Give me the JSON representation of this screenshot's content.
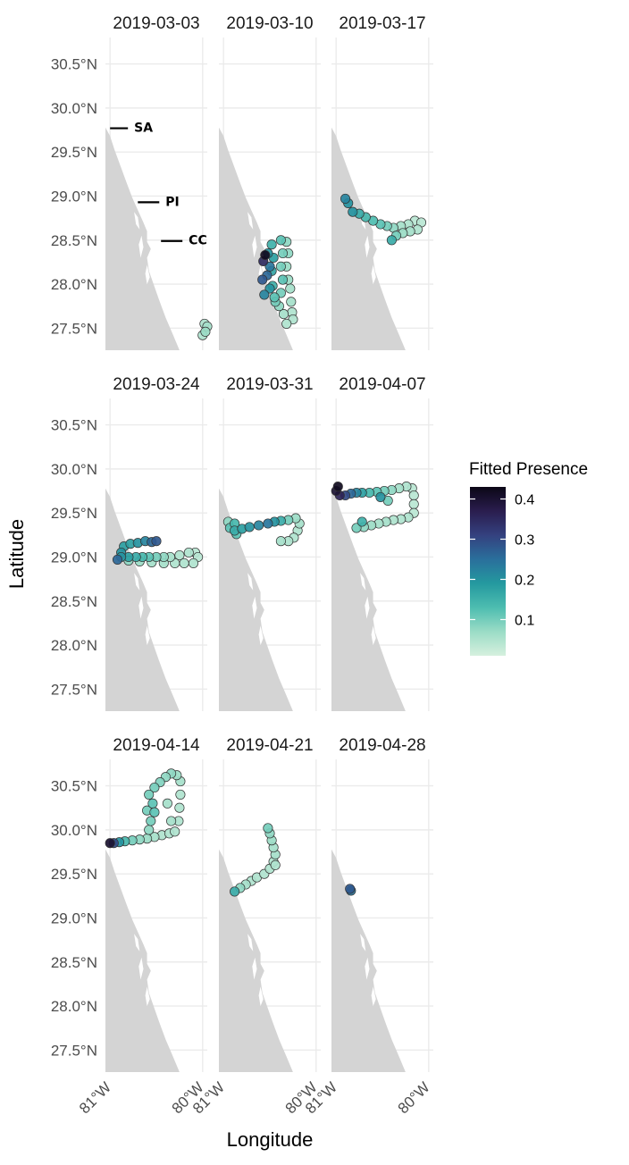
{
  "chart_data": {
    "type": "scatter",
    "facets": [
      {
        "title": "2019-03-03",
        "points": [
          [
            -79.95,
            27.52,
            0.06
          ],
          [
            -79.97,
            27.46,
            0.07
          ],
          [
            -80.0,
            27.42,
            0.05
          ],
          [
            -79.98,
            27.55,
            0.05
          ]
        ]
      },
      {
        "title": "2019-03-10",
        "points": [
          [
            -80.55,
            28.33,
            0.42
          ],
          [
            -80.57,
            28.26,
            0.35
          ],
          [
            -80.58,
            28.05,
            0.28
          ],
          [
            -80.56,
            27.88,
            0.22
          ],
          [
            -80.52,
            28.35,
            0.2
          ],
          [
            -80.48,
            28.45,
            0.15
          ],
          [
            -80.46,
            28.3,
            0.18
          ],
          [
            -80.48,
            28.15,
            0.17
          ],
          [
            -80.47,
            27.98,
            0.15
          ],
          [
            -80.45,
            27.85,
            0.12
          ],
          [
            -80.44,
            27.8,
            0.1
          ],
          [
            -80.4,
            27.75,
            0.08
          ],
          [
            -80.38,
            27.9,
            0.1
          ],
          [
            -80.36,
            28.05,
            0.12
          ],
          [
            -80.38,
            28.2,
            0.1
          ],
          [
            -80.36,
            28.35,
            0.1
          ],
          [
            -80.38,
            28.5,
            0.12
          ],
          [
            -80.32,
            28.48,
            0.08
          ],
          [
            -80.3,
            28.35,
            0.08
          ],
          [
            -80.32,
            28.2,
            0.07
          ],
          [
            -80.3,
            28.05,
            0.07
          ],
          [
            -80.28,
            27.95,
            0.06
          ],
          [
            -80.27,
            27.8,
            0.06
          ],
          [
            -80.26,
            27.68,
            0.05
          ],
          [
            -80.25,
            27.6,
            0.05
          ],
          [
            -80.32,
            27.55,
            0.05
          ],
          [
            -80.35,
            27.66,
            0.06
          ],
          [
            -80.5,
            28.2,
            0.24
          ],
          [
            -80.53,
            28.1,
            0.26
          ],
          [
            -80.5,
            27.95,
            0.2
          ]
        ]
      },
      {
        "title": "2019-03-17",
        "points": [
          [
            -80.9,
            28.97,
            0.22
          ],
          [
            -80.87,
            28.92,
            0.2
          ],
          [
            -80.82,
            28.82,
            0.2
          ],
          [
            -80.75,
            28.8,
            0.16
          ],
          [
            -80.68,
            28.76,
            0.14
          ],
          [
            -80.6,
            28.72,
            0.13
          ],
          [
            -80.52,
            28.68,
            0.12
          ],
          [
            -80.45,
            28.66,
            0.1
          ],
          [
            -80.38,
            28.64,
            0.08
          ],
          [
            -80.3,
            28.66,
            0.06
          ],
          [
            -80.22,
            28.68,
            0.05
          ],
          [
            -80.15,
            28.72,
            0.04
          ],
          [
            -80.08,
            28.7,
            0.04
          ],
          [
            -80.12,
            28.62,
            0.05
          ],
          [
            -80.2,
            28.6,
            0.06
          ],
          [
            -80.28,
            28.58,
            0.07
          ],
          [
            -80.35,
            28.55,
            0.1
          ],
          [
            -80.4,
            28.5,
            0.16
          ]
        ]
      },
      {
        "title": "2019-03-24",
        "points": [
          [
            -80.92,
            28.97,
            0.26
          ],
          [
            -80.88,
            29.05,
            0.2
          ],
          [
            -80.85,
            29.12,
            0.18
          ],
          [
            -80.78,
            29.15,
            0.18
          ],
          [
            -80.7,
            29.16,
            0.2
          ],
          [
            -80.62,
            29.18,
            0.22
          ],
          [
            -80.55,
            29.17,
            0.26
          ],
          [
            -80.5,
            29.18,
            0.28
          ],
          [
            -80.88,
            29.0,
            0.2
          ],
          [
            -80.8,
            29.0,
            0.18
          ],
          [
            -80.72,
            29.0,
            0.16
          ],
          [
            -80.65,
            29.0,
            0.14
          ],
          [
            -80.58,
            29.0,
            0.12
          ],
          [
            -80.5,
            29.0,
            0.1
          ],
          [
            -80.42,
            29.0,
            0.08
          ],
          [
            -80.35,
            29.0,
            0.06
          ],
          [
            -80.25,
            29.02,
            0.05
          ],
          [
            -80.15,
            29.05,
            0.05
          ],
          [
            -80.08,
            29.05,
            0.04
          ],
          [
            -80.05,
            29.0,
            0.04
          ],
          [
            -80.1,
            28.93,
            0.05
          ],
          [
            -80.2,
            28.93,
            0.05
          ],
          [
            -80.3,
            28.93,
            0.05
          ],
          [
            -80.42,
            28.93,
            0.06
          ],
          [
            -80.55,
            28.94,
            0.06
          ],
          [
            -80.68,
            28.95,
            0.07
          ],
          [
            -80.8,
            28.96,
            0.08
          ]
        ]
      },
      {
        "title": "2019-03-31",
        "points": [
          [
            -80.95,
            29.4,
            0.08
          ],
          [
            -80.93,
            29.33,
            0.12
          ],
          [
            -80.88,
            29.3,
            0.16
          ],
          [
            -80.8,
            29.32,
            0.18
          ],
          [
            -80.72,
            29.34,
            0.2
          ],
          [
            -80.62,
            29.36,
            0.22
          ],
          [
            -80.52,
            29.38,
            0.24
          ],
          [
            -80.45,
            29.4,
            0.2
          ],
          [
            -80.38,
            29.41,
            0.16
          ],
          [
            -80.3,
            29.42,
            0.1
          ],
          [
            -80.22,
            29.44,
            0.07
          ],
          [
            -80.18,
            29.38,
            0.06
          ],
          [
            -80.2,
            29.3,
            0.05
          ],
          [
            -80.24,
            29.22,
            0.05
          ],
          [
            -80.3,
            29.18,
            0.05
          ],
          [
            -80.38,
            29.18,
            0.06
          ],
          [
            -80.88,
            29.38,
            0.14
          ],
          [
            -80.86,
            29.26,
            0.12
          ]
        ]
      },
      {
        "title": "2019-04-07",
        "points": [
          [
            -80.98,
            29.8,
            0.42
          ],
          [
            -81.0,
            29.75,
            0.4
          ],
          [
            -80.96,
            29.7,
            0.36
          ],
          [
            -80.9,
            29.7,
            0.3
          ],
          [
            -80.84,
            29.72,
            0.26
          ],
          [
            -80.78,
            29.73,
            0.22
          ],
          [
            -80.72,
            29.73,
            0.18
          ],
          [
            -80.64,
            29.73,
            0.14
          ],
          [
            -80.56,
            29.74,
            0.12
          ],
          [
            -80.48,
            29.75,
            0.1
          ],
          [
            -80.4,
            29.76,
            0.08
          ],
          [
            -80.32,
            29.78,
            0.06
          ],
          [
            -80.24,
            29.8,
            0.05
          ],
          [
            -80.18,
            29.78,
            0.04
          ],
          [
            -80.16,
            29.7,
            0.04
          ],
          [
            -80.16,
            29.6,
            0.04
          ],
          [
            -80.16,
            29.5,
            0.04
          ],
          [
            -80.22,
            29.45,
            0.05
          ],
          [
            -80.3,
            29.43,
            0.05
          ],
          [
            -80.38,
            29.42,
            0.05
          ],
          [
            -80.46,
            29.4,
            0.06
          ],
          [
            -80.54,
            29.38,
            0.06
          ],
          [
            -80.62,
            29.36,
            0.07
          ],
          [
            -80.7,
            29.34,
            0.08
          ],
          [
            -80.78,
            29.33,
            0.1
          ],
          [
            -80.72,
            29.4,
            0.15
          ],
          [
            -80.52,
            29.68,
            0.2
          ],
          [
            -80.44,
            29.64,
            0.1
          ]
        ]
      },
      {
        "title": "2019-04-14",
        "points": [
          [
            -81.0,
            29.85,
            0.4
          ],
          [
            -80.96,
            29.85,
            0.3
          ],
          [
            -80.9,
            29.86,
            0.2
          ],
          [
            -80.84,
            29.87,
            0.14
          ],
          [
            -80.76,
            29.88,
            0.1
          ],
          [
            -80.68,
            29.89,
            0.08
          ],
          [
            -80.6,
            29.9,
            0.07
          ],
          [
            -80.52,
            29.92,
            0.06
          ],
          [
            -80.44,
            29.94,
            0.05
          ],
          [
            -80.36,
            29.96,
            0.05
          ],
          [
            -80.3,
            29.98,
            0.05
          ],
          [
            -80.26,
            30.1,
            0.05
          ],
          [
            -80.25,
            30.25,
            0.05
          ],
          [
            -80.24,
            30.4,
            0.05
          ],
          [
            -80.24,
            30.55,
            0.06
          ],
          [
            -80.28,
            30.62,
            0.07
          ],
          [
            -80.34,
            30.64,
            0.08
          ],
          [
            -80.4,
            30.6,
            0.08
          ],
          [
            -80.46,
            30.54,
            0.09
          ],
          [
            -80.52,
            30.48,
            0.1
          ],
          [
            -80.58,
            30.4,
            0.1
          ],
          [
            -80.54,
            30.3,
            0.12
          ],
          [
            -80.52,
            30.2,
            0.12
          ],
          [
            -80.56,
            30.1,
            0.1
          ],
          [
            -80.58,
            30.0,
            0.08
          ],
          [
            -80.34,
            30.1,
            0.06
          ],
          [
            -80.38,
            30.3,
            0.06
          ],
          [
            -80.6,
            30.22,
            0.1
          ]
        ]
      },
      {
        "title": "2019-04-21",
        "points": [
          [
            -80.88,
            29.3,
            0.16
          ],
          [
            -80.82,
            29.34,
            0.08
          ],
          [
            -80.76,
            29.38,
            0.06
          ],
          [
            -80.7,
            29.42,
            0.05
          ],
          [
            -80.64,
            29.46,
            0.05
          ],
          [
            -80.56,
            29.5,
            0.05
          ],
          [
            -80.5,
            29.56,
            0.05
          ],
          [
            -80.46,
            29.64,
            0.05
          ],
          [
            -80.44,
            29.72,
            0.06
          ],
          [
            -80.46,
            29.8,
            0.06
          ],
          [
            -80.48,
            29.88,
            0.07
          ],
          [
            -80.5,
            29.96,
            0.08
          ],
          [
            -80.52,
            30.02,
            0.1
          ],
          [
            -80.44,
            29.6,
            0.05
          ]
        ]
      },
      {
        "title": "2019-04-28",
        "points": [
          [
            -80.85,
            29.33,
            0.28
          ],
          [
            -80.84,
            29.31,
            0.24
          ]
        ]
      }
    ],
    "y_ticks": [
      "27.5°N",
      "28.0°N",
      "28.5°N",
      "29.0°N",
      "29.5°N",
      "30.0°N",
      "30.5°N"
    ],
    "y_tick_values": [
      27.5,
      28.0,
      28.5,
      29.0,
      29.5,
      30.0,
      30.5
    ],
    "x_ticks": [
      "81°W",
      "80°W"
    ],
    "x_tick_values": [
      -81,
      -80
    ],
    "xlabel": "Longitude",
    "ylabel": "Latitude",
    "xlim": [
      -81.05,
      -79.95
    ],
    "ylim": [
      27.25,
      30.8
    ],
    "legend": {
      "title": "Fitted Presence",
      "ticks": [
        "0.4",
        "0.3",
        "0.2",
        "0.1"
      ],
      "tick_values": [
        0.4,
        0.3,
        0.2,
        0.1
      ],
      "range": [
        0.01,
        0.43
      ],
      "colors": [
        "#d6f0de",
        "#9bdcc6",
        "#4dbdb0",
        "#24999f",
        "#2a6f9c",
        "#34417f",
        "#2a1d4e",
        "#0b0716"
      ]
    },
    "site_labels": [
      {
        "label": "SA",
        "lon": -81.0,
        "lat": 29.77
      },
      {
        "label": "PI",
        "lon": -80.7,
        "lat": 28.93
      },
      {
        "label": "CC",
        "lon": -80.45,
        "lat": 28.49
      }
    ],
    "colors": {
      "panel_bg": "#ffffff",
      "grid": "#ebebeb",
      "land": "#d4d4d4",
      "point_stroke": "#333333"
    }
  }
}
